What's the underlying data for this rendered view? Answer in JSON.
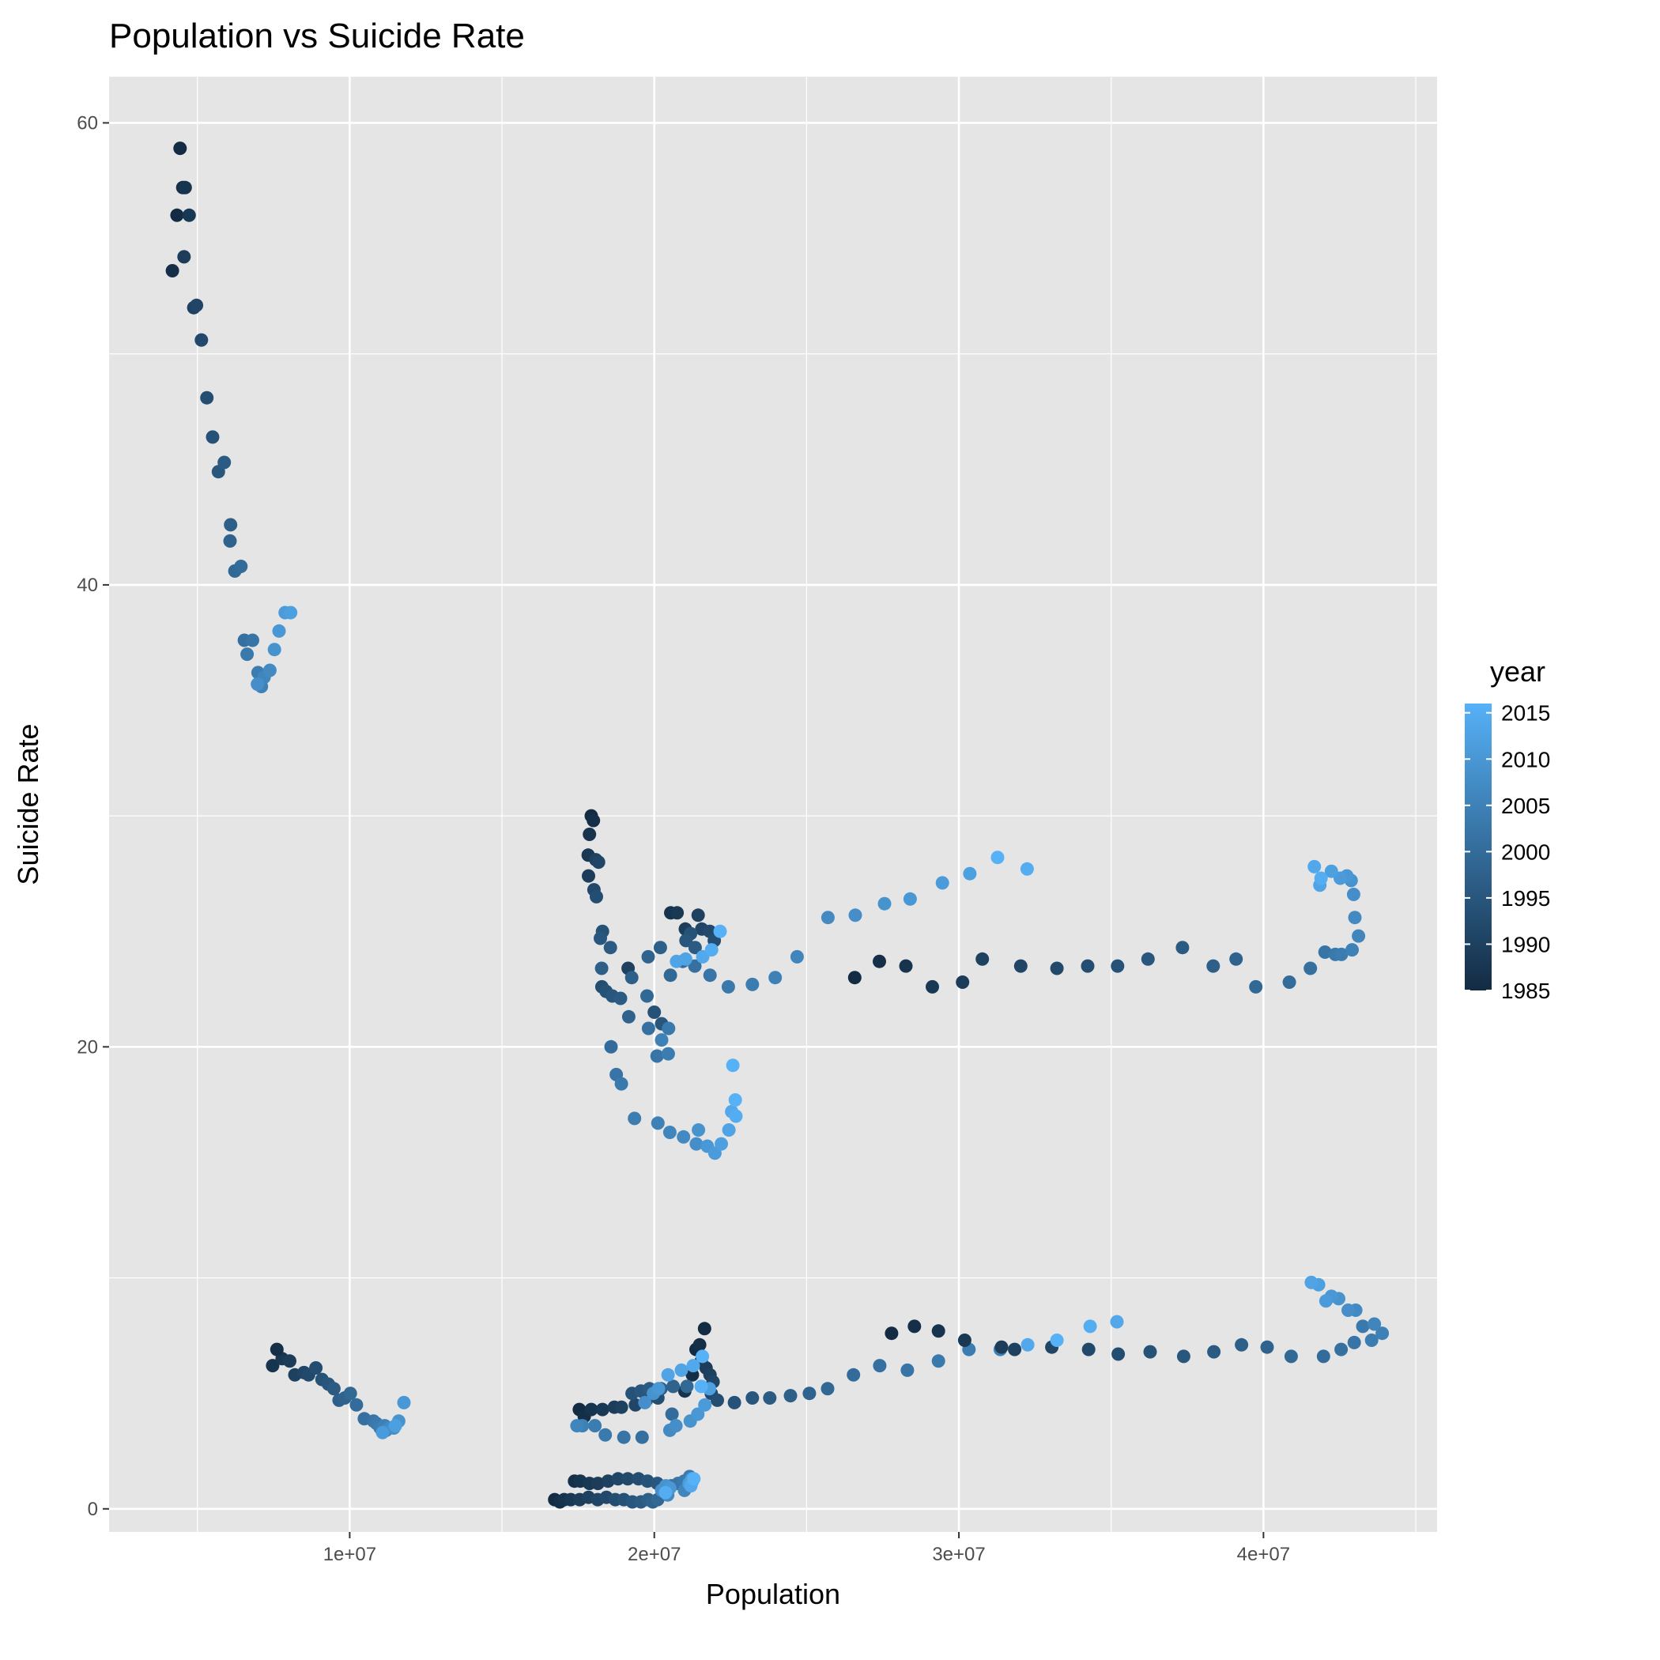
{
  "chart_data": {
    "type": "scatter",
    "title": "Population vs Suicide Rate",
    "xlabel": "Population",
    "ylabel": "Suicide Rate",
    "xlim": [
      2100000,
      45700000
    ],
    "ylim": [
      -1.0,
      62.0
    ],
    "x_ticks": [
      {
        "value": 10000000,
        "label": "1e+07"
      },
      {
        "value": 20000000,
        "label": "2e+07"
      },
      {
        "value": 30000000,
        "label": "3e+07"
      },
      {
        "value": 40000000,
        "label": "4e+07"
      }
    ],
    "y_ticks": [
      {
        "value": 0,
        "label": "0"
      },
      {
        "value": 20,
        "label": "20"
      },
      {
        "value": 40,
        "label": "40"
      },
      {
        "value": 60,
        "label": "60"
      }
    ],
    "grid": true,
    "color_scale": {
      "variable": "year",
      "low_color": "#132B43",
      "high_color": "#56B1F7",
      "range": [
        1985,
        2016
      ],
      "legend_title": "year",
      "legend_position": "right",
      "legend_labels": [
        1985,
        1990,
        1995,
        2000,
        2005,
        2010,
        2015
      ]
    },
    "points": [
      [
        4430000,
        58.9,
        1985
      ],
      [
        4520000,
        57.2,
        1986
      ],
      [
        4600000,
        57.2,
        1987
      ],
      [
        4330000,
        56.0,
        1985
      ],
      [
        4730000,
        56.0,
        1988
      ],
      [
        4560000,
        54.2,
        1989
      ],
      [
        4180000,
        53.6,
        1986
      ],
      [
        4880000,
        52.0,
        1990
      ],
      [
        4970000,
        52.1,
        1991
      ],
      [
        5130000,
        50.6,
        1992
      ],
      [
        5310000,
        48.1,
        1993
      ],
      [
        5500000,
        46.4,
        1994
      ],
      [
        5690000,
        44.9,
        1995
      ],
      [
        5880000,
        45.3,
        1996
      ],
      [
        6090000,
        42.6,
        1997
      ],
      [
        6070000,
        41.9,
        1998
      ],
      [
        6230000,
        40.6,
        1999
      ],
      [
        6430000,
        40.8,
        2000
      ],
      [
        6540000,
        37.6,
        2001
      ],
      [
        6810000,
        37.6,
        2002
      ],
      [
        6630000,
        37.0,
        2003
      ],
      [
        6990000,
        36.2,
        2004
      ],
      [
        7100000,
        35.6,
        2005
      ],
      [
        7190000,
        36.0,
        2006
      ],
      [
        7380000,
        36.3,
        2007
      ],
      [
        6970000,
        35.7,
        2008
      ],
      [
        7530000,
        37.2,
        2009
      ],
      [
        7680000,
        38.0,
        2010
      ],
      [
        7880000,
        38.8,
        2011
      ],
      [
        8060000,
        38.8,
        2012
      ],
      [
        17930000,
        30.0,
        1985
      ],
      [
        18000000,
        29.8,
        1986
      ],
      [
        17870000,
        29.2,
        1987
      ],
      [
        17830000,
        28.3,
        1988
      ],
      [
        17840000,
        27.4,
        1989
      ],
      [
        18080000,
        28.1,
        1990
      ],
      [
        18170000,
        28.0,
        1991
      ],
      [
        18020000,
        26.8,
        1992
      ],
      [
        18100000,
        26.5,
        1993
      ],
      [
        18300000,
        25.0,
        1994
      ],
      [
        18230000,
        24.7,
        1995
      ],
      [
        18560000,
        24.3,
        1996
      ],
      [
        18270000,
        23.4,
        1997
      ],
      [
        19140000,
        23.4,
        1990
      ],
      [
        18280000,
        22.6,
        1993
      ],
      [
        18420000,
        22.4,
        1994
      ],
      [
        18620000,
        22.2,
        1995
      ],
      [
        18890000,
        22.1,
        1996
      ],
      [
        19260000,
        23.0,
        1997
      ],
      [
        19160000,
        21.3,
        1998
      ],
      [
        19760000,
        22.2,
        1999
      ],
      [
        18580000,
        20.0,
        2000
      ],
      [
        20000000,
        21.5,
        1994
      ],
      [
        20240000,
        21.0,
        1995
      ],
      [
        19810000,
        20.8,
        2001
      ],
      [
        20090000,
        19.6,
        2002
      ],
      [
        20470000,
        20.8,
        2003
      ],
      [
        20460000,
        19.7,
        2004
      ],
      [
        20240000,
        20.3,
        2005
      ],
      [
        18750000,
        18.8,
        2002
      ],
      [
        18920000,
        18.4,
        2003
      ],
      [
        19350000,
        16.9,
        2004
      ],
      [
        20120000,
        16.7,
        2005
      ],
      [
        20510000,
        16.3,
        2006
      ],
      [
        20960000,
        16.1,
        2007
      ],
      [
        21380000,
        15.8,
        2008
      ],
      [
        21450000,
        16.4,
        2009
      ],
      [
        21740000,
        15.7,
        2010
      ],
      [
        21990000,
        15.4,
        2011
      ],
      [
        22200000,
        15.8,
        2012
      ],
      [
        22450000,
        16.4,
        2013
      ],
      [
        22540000,
        17.2,
        2014
      ],
      [
        22680000,
        17.0,
        2015
      ],
      [
        22660000,
        17.7,
        2016
      ],
      [
        22580000,
        19.2,
        2016
      ],
      [
        20540000,
        25.8,
        1987
      ],
      [
        20750000,
        25.8,
        1988
      ],
      [
        21020000,
        25.1,
        1989
      ],
      [
        21440000,
        25.7,
        1990
      ],
      [
        21560000,
        25.1,
        1991
      ],
      [
        21820000,
        25.0,
        1992
      ],
      [
        21970000,
        24.6,
        1993
      ],
      [
        21190000,
        24.9,
        1994
      ],
      [
        21040000,
        24.6,
        1995
      ],
      [
        21340000,
        24.3,
        1996
      ],
      [
        20200000,
        24.3,
        1997
      ],
      [
        19800000,
        23.9,
        1998
      ],
      [
        20530000,
        23.1,
        1999
      ],
      [
        20930000,
        23.7,
        2000
      ],
      [
        21330000,
        23.5,
        2001
      ],
      [
        21830000,
        23.1,
        2002
      ],
      [
        22430000,
        22.6,
        2003
      ],
      [
        23220000,
        22.7,
        2004
      ],
      [
        23970000,
        23.0,
        2005
      ],
      [
        24690000,
        23.9,
        2006
      ],
      [
        25700000,
        25.6,
        2007
      ],
      [
        26600000,
        25.7,
        2008
      ],
      [
        27560000,
        26.2,
        2009
      ],
      [
        28400000,
        26.4,
        2010
      ],
      [
        29460000,
        27.1,
        2011
      ],
      [
        30360000,
        27.5,
        2012
      ],
      [
        21030000,
        23.8,
        2013
      ],
      [
        20730000,
        23.7,
        2013
      ],
      [
        21590000,
        23.9,
        2014
      ],
      [
        21880000,
        24.2,
        2015
      ],
      [
        22160000,
        25.0,
        2016
      ],
      [
        31270000,
        28.2,
        2016
      ],
      [
        32240000,
        27.7,
        2015
      ],
      [
        26580000,
        23.0,
        1985
      ],
      [
        27390000,
        23.7,
        1986
      ],
      [
        28260000,
        23.5,
        1987
      ],
      [
        29130000,
        22.6,
        1988
      ],
      [
        30120000,
        22.8,
        1989
      ],
      [
        30770000,
        23.8,
        1990
      ],
      [
        32030000,
        23.5,
        1991
      ],
      [
        33220000,
        23.4,
        1992
      ],
      [
        34230000,
        23.5,
        1993
      ],
      [
        35210000,
        23.5,
        1994
      ],
      [
        36210000,
        23.8,
        1995
      ],
      [
        37340000,
        24.3,
        1996
      ],
      [
        38350000,
        23.5,
        1997
      ],
      [
        39100000,
        23.8,
        1998
      ],
      [
        39750000,
        22.6,
        1999
      ],
      [
        40850000,
        22.8,
        2000
      ],
      [
        41540000,
        23.4,
        2001
      ],
      [
        42020000,
        24.1,
        2002
      ],
      [
        42360000,
        24.0,
        2003
      ],
      [
        42560000,
        24.0,
        2004
      ],
      [
        42910000,
        24.2,
        2005
      ],
      [
        43120000,
        24.8,
        2006
      ],
      [
        43000000,
        25.6,
        2007
      ],
      [
        42960000,
        26.6,
        2008
      ],
      [
        42880000,
        27.2,
        2009
      ],
      [
        42740000,
        27.4,
        2010
      ],
      [
        42520000,
        27.3,
        2011
      ],
      [
        42230000,
        27.6,
        2012
      ],
      [
        41850000,
        27.0,
        2013
      ],
      [
        41670000,
        27.8,
        2014
      ],
      [
        41890000,
        27.3,
        2015
      ],
      [
        7470000,
        6.2,
        1987
      ],
      [
        7780000,
        6.5,
        1988
      ],
      [
        7610000,
        6.9,
        1986
      ],
      [
        8030000,
        6.4,
        1989
      ],
      [
        8200000,
        5.8,
        1990
      ],
      [
        8500000,
        5.9,
        1991
      ],
      [
        8650000,
        5.8,
        1992
      ],
      [
        8890000,
        6.1,
        1993
      ],
      [
        9090000,
        5.6,
        1994
      ],
      [
        9300000,
        5.4,
        1995
      ],
      [
        9480000,
        5.2,
        1996
      ],
      [
        9650000,
        4.7,
        1997
      ],
      [
        9840000,
        4.8,
        1998
      ],
      [
        10020000,
        5.0,
        1999
      ],
      [
        10220000,
        4.5,
        2000
      ],
      [
        10480000,
        3.9,
        2001
      ],
      [
        10780000,
        3.8,
        2002
      ],
      [
        10880000,
        3.7,
        2003
      ],
      [
        11000000,
        3.5,
        2004
      ],
      [
        11150000,
        3.6,
        2005
      ],
      [
        11200000,
        3.4,
        2006
      ],
      [
        11320000,
        3.5,
        2007
      ],
      [
        11450000,
        3.5,
        2008
      ],
      [
        11610000,
        3.8,
        2009
      ],
      [
        11780000,
        4.6,
        2010
      ],
      [
        11080000,
        3.3,
        2011
      ],
      [
        11500000,
        3.6,
        2012
      ],
      [
        16730000,
        0.4,
        1985
      ],
      [
        16900000,
        0.3,
        1986
      ],
      [
        17040000,
        0.4,
        1987
      ],
      [
        17260000,
        0.4,
        1988
      ],
      [
        17550000,
        0.4,
        1989
      ],
      [
        17840000,
        0.5,
        1990
      ],
      [
        18140000,
        0.4,
        1991
      ],
      [
        18430000,
        0.5,
        1992
      ],
      [
        18720000,
        0.4,
        1993
      ],
      [
        19000000,
        0.4,
        1994
      ],
      [
        19280000,
        0.3,
        1995
      ],
      [
        19560000,
        0.3,
        1996
      ],
      [
        19800000,
        0.4,
        1997
      ],
      [
        19950000,
        0.3,
        1998
      ],
      [
        20110000,
        0.4,
        1999
      ],
      [
        17380000,
        1.2,
        1986
      ],
      [
        17570000,
        1.2,
        1987
      ],
      [
        17870000,
        1.1,
        1988
      ],
      [
        18150000,
        1.1,
        1989
      ],
      [
        18480000,
        1.2,
        1990
      ],
      [
        18810000,
        1.3,
        1991
      ],
      [
        19130000,
        1.3,
        1992
      ],
      [
        19480000,
        1.3,
        1993
      ],
      [
        19780000,
        1.2,
        1994
      ],
      [
        20100000,
        1.1,
        1995
      ],
      [
        20350000,
        0.8,
        2000
      ],
      [
        20560000,
        1.0,
        2001
      ],
      [
        20780000,
        1.1,
        2002
      ],
      [
        20980000,
        1.2,
        2003
      ],
      [
        21160000,
        1.4,
        2004
      ],
      [
        21250000,
        1.2,
        2005
      ],
      [
        20990000,
        0.8,
        2006
      ],
      [
        20440000,
        0.6,
        2007
      ],
      [
        20240000,
        0.8,
        2008
      ],
      [
        20380000,
        1.0,
        2009
      ],
      [
        20510000,
        0.9,
        2010
      ],
      [
        21140000,
        1.1,
        2011
      ],
      [
        21240000,
        1.3,
        2012
      ],
      [
        21200000,
        1.0,
        2014
      ],
      [
        20370000,
        0.7,
        2015
      ],
      [
        21300000,
        1.3,
        2016
      ],
      [
        17540000,
        4.3,
        1985
      ],
      [
        17700000,
        4.0,
        1986
      ],
      [
        17930000,
        4.3,
        1987
      ],
      [
        18300000,
        4.3,
        1988
      ],
      [
        18690000,
        4.4,
        1989
      ],
      [
        18920000,
        4.4,
        1990
      ],
      [
        19380000,
        4.5,
        1991
      ],
      [
        19740000,
        4.7,
        1992
      ],
      [
        20120000,
        4.8,
        1993
      ],
      [
        21000000,
        5.1,
        1987
      ],
      [
        21250000,
        5.8,
        1986
      ],
      [
        21370000,
        6.9,
        1985
      ],
      [
        21490000,
        7.1,
        1986
      ],
      [
        21650000,
        7.8,
        1985
      ],
      [
        21540000,
        6.4,
        1988
      ],
      [
        21700000,
        6.1,
        1989
      ],
      [
        21830000,
        5.8,
        1990
      ],
      [
        21930000,
        5.5,
        1991
      ],
      [
        21870000,
        5.0,
        1992
      ],
      [
        22070000,
        4.7,
        1993
      ],
      [
        22630000,
        4.6,
        1994
      ],
      [
        23220000,
        4.8,
        1995
      ],
      [
        23790000,
        4.8,
        1996
      ],
      [
        24470000,
        4.9,
        1997
      ],
      [
        25090000,
        5.0,
        1998
      ],
      [
        25690000,
        5.2,
        1999
      ],
      [
        26540000,
        5.8,
        2000
      ],
      [
        27400000,
        6.2,
        2001
      ],
      [
        28310000,
        6.0,
        2002
      ],
      [
        29330000,
        6.4,
        2003
      ],
      [
        30330000,
        6.9,
        2004
      ],
      [
        31360000,
        6.9,
        2005
      ],
      [
        19270000,
        5.0,
        1994
      ],
      [
        19560000,
        5.1,
        1995
      ],
      [
        19840000,
        5.2,
        1996
      ],
      [
        20220000,
        5.2,
        1997
      ],
      [
        20620000,
        5.3,
        1998
      ],
      [
        21070000,
        5.3,
        1999
      ],
      [
        20580000,
        4.1,
        2000
      ],
      [
        19600000,
        3.1,
        2001
      ],
      [
        19000000,
        3.1,
        2002
      ],
      [
        18390000,
        3.2,
        2003
      ],
      [
        18050000,
        3.6,
        2004
      ],
      [
        17640000,
        3.6,
        2005
      ],
      [
        17460000,
        3.6,
        2006
      ],
      [
        20510000,
        3.4,
        2007
      ],
      [
        20710000,
        3.6,
        2008
      ],
      [
        21180000,
        3.8,
        2009
      ],
      [
        21430000,
        4.1,
        2010
      ],
      [
        21660000,
        4.5,
        2011
      ],
      [
        21810000,
        5.2,
        2012
      ],
      [
        20450000,
        5.8,
        2013
      ],
      [
        20890000,
        6.0,
        2013
      ],
      [
        21280000,
        6.2,
        2014
      ],
      [
        21580000,
        6.6,
        2016
      ],
      [
        19690000,
        4.6,
        2008
      ],
      [
        19970000,
        5.0,
        2009
      ],
      [
        20140000,
        5.2,
        2010
      ],
      [
        21540000,
        5.3,
        2016
      ],
      [
        27790000,
        7.6,
        1985
      ],
      [
        28540000,
        7.9,
        1986
      ],
      [
        29330000,
        7.7,
        1987
      ],
      [
        30190000,
        7.3,
        1988
      ],
      [
        31400000,
        7.0,
        1989
      ],
      [
        31830000,
        6.9,
        1990
      ],
      [
        33050000,
        7.0,
        1991
      ],
      [
        34260000,
        6.9,
        1992
      ],
      [
        35230000,
        6.7,
        1993
      ],
      [
        36280000,
        6.8,
        1994
      ],
      [
        37380000,
        6.6,
        1995
      ],
      [
        38370000,
        6.8,
        1996
      ],
      [
        39280000,
        7.1,
        1997
      ],
      [
        40120000,
        7.0,
        1998
      ],
      [
        40910000,
        6.6,
        1999
      ],
      [
        41970000,
        6.6,
        2000
      ],
      [
        42550000,
        6.9,
        2001
      ],
      [
        42980000,
        7.2,
        2002
      ],
      [
        43260000,
        7.9,
        2003
      ],
      [
        43550000,
        7.3,
        2004
      ],
      [
        43900000,
        7.6,
        2005
      ],
      [
        43640000,
        8.0,
        2006
      ],
      [
        43030000,
        8.6,
        2007
      ],
      [
        42780000,
        8.6,
        2008
      ],
      [
        42470000,
        9.1,
        2009
      ],
      [
        42230000,
        9.2,
        2010
      ],
      [
        42050000,
        9.0,
        2011
      ],
      [
        41810000,
        9.7,
        2012
      ],
      [
        41570000,
        9.8,
        2013
      ],
      [
        35190000,
        8.1,
        2014
      ],
      [
        34310000,
        7.9,
        2015
      ],
      [
        33220000,
        7.3,
        2016
      ],
      [
        32260000,
        7.1,
        2014
      ]
    ]
  }
}
